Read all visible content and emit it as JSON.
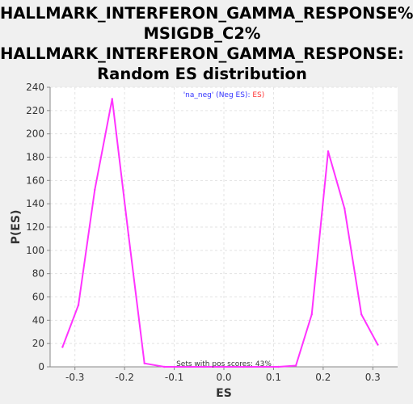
{
  "title_lines": [
    "HALLMARK_INTERFERON_GAMMA_RESPONSE%",
    "MSIGDB_C2%",
    "HALLMARK_INTERFERON_GAMMA_RESPONSE:",
    "Random ES distribution"
  ],
  "colors": {
    "background": "#f0f0f0",
    "plot_background": "#ffffff",
    "series": "#ff33ff",
    "legend_blue": "#3333ff",
    "legend_red": "#ff3333",
    "grid": "#e3e3e3"
  },
  "chart_data": {
    "type": "line",
    "title": "HALLMARK_INTERFERON_GAMMA_RESPONSE% MSIGDB_C2% HALLMARK_INTERFERON_GAMMA_RESPONSE: Random ES distribution",
    "xlabel": "ES",
    "ylabel": "P(ES)",
    "xlim": [
      -0.35,
      0.35
    ],
    "ylim": [
      0,
      240
    ],
    "xticks": [
      -0.3,
      -0.2,
      -0.1,
      0.0,
      0.1,
      0.2,
      0.3
    ],
    "xtick_labels": [
      "-0.3",
      "-0.2",
      "-0.1",
      "0.0",
      "0.1",
      "0.2",
      "0.3"
    ],
    "yticks": [
      0,
      20,
      40,
      60,
      80,
      100,
      120,
      140,
      160,
      180,
      200,
      220,
      240
    ],
    "ytick_labels": [
      "0",
      "20",
      "40",
      "60",
      "80",
      "100",
      "120",
      "140",
      "160",
      "180",
      "200",
      "220",
      "240"
    ],
    "grid": true,
    "legend": {
      "placement": "top-center",
      "parts": [
        {
          "text": "'na_neg' (Neg ES)",
          "color": "#3333ff"
        },
        {
          "text": ": ",
          "color": "#3333ff"
        },
        {
          "text": "ES)",
          "color": "#ff3333"
        }
      ]
    },
    "annotation": "Sets with pos scores: 43%",
    "series": [
      {
        "color": "#ff33ff",
        "points": [
          [
            -0.325,
            17
          ],
          [
            -0.293,
            53
          ],
          [
            -0.26,
            152
          ],
          [
            -0.225,
            230
          ],
          [
            -0.192,
            113
          ],
          [
            -0.16,
            3
          ],
          [
            -0.12,
            0
          ],
          [
            -0.08,
            0
          ],
          [
            -0.04,
            0
          ],
          [
            0.0,
            0
          ],
          [
            0.04,
            0
          ],
          [
            0.08,
            0
          ],
          [
            0.11,
            0
          ],
          [
            0.145,
            1
          ],
          [
            0.177,
            45
          ],
          [
            0.21,
            185
          ],
          [
            0.243,
            136
          ],
          [
            0.277,
            45
          ],
          [
            0.31,
            19
          ]
        ]
      }
    ]
  }
}
